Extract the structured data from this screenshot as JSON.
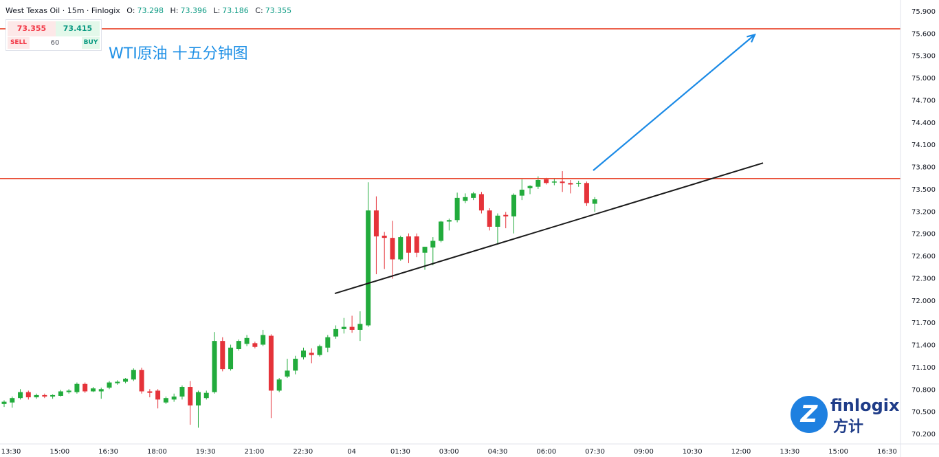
{
  "header": {
    "symbol_line": "West Texas Oil · 15m · Finlogix",
    "o_label": "O:",
    "o_value": "73.298",
    "h_label": "H:",
    "h_value": "73.396",
    "l_label": "L:",
    "l_value": "73.186",
    "c_label": "C:",
    "c_value": "73.355"
  },
  "trade_panel": {
    "sell_price": "73.355",
    "buy_price": "73.415",
    "sell_label": "SELL",
    "quantity": "60",
    "buy_label": "BUY"
  },
  "annotation": "WTI原油 十五分钟图",
  "logo": {
    "name": "finlogix",
    "cn_name": "方计",
    "badge": "Z"
  },
  "chart_data": {
    "type": "candlestick",
    "interval": "15m",
    "y_ticks": [
      "75.900",
      "75.600",
      "75.300",
      "75.000",
      "74.700",
      "74.400",
      "74.100",
      "73.800",
      "73.500",
      "73.200",
      "72.900",
      "72.600",
      "72.300",
      "72.000",
      "71.700",
      "71.400",
      "71.100",
      "70.800",
      "70.500",
      "70.200"
    ],
    "x_ticks": [
      "13:30",
      "15:00",
      "16:30",
      "18:00",
      "19:30",
      "21:00",
      "22:30",
      "04",
      "01:30",
      "03:00",
      "04:30",
      "06:00",
      "07:30",
      "09:00",
      "10:30",
      "12:00",
      "13:30",
      "15:00",
      "16:30"
    ],
    "ylim": [
      70.15,
      75.95
    ],
    "colors": {
      "up": "#22ab3c",
      "down": "#e5333a",
      "hline": "#e8452c",
      "trend": "#1a1a1a",
      "arrow": "#1a8ae6"
    },
    "horizontal_lines": [
      75.66,
      73.64
    ],
    "trend_line": {
      "from": [
        0,
        72.09
      ],
      "to": [
        0,
        73.85
      ],
      "from_label": "~23:50",
      "to_label": "~12:45"
    },
    "arrow": {
      "from": [
        0,
        73.75
      ],
      "to": [
        0,
        75.58
      ],
      "from_label": "~07:20",
      "to_label": "~12:35"
    },
    "candles": [
      {
        "o": 70.6,
        "h": 70.65,
        "l": 70.56,
        "c": 70.63
      },
      {
        "o": 70.62,
        "h": 70.7,
        "l": 70.55,
        "c": 70.68
      },
      {
        "o": 70.68,
        "h": 70.8,
        "l": 70.66,
        "c": 70.76
      },
      {
        "o": 70.76,
        "h": 70.78,
        "l": 70.66,
        "c": 70.69
      },
      {
        "o": 70.69,
        "h": 70.74,
        "l": 70.67,
        "c": 70.72
      },
      {
        "o": 70.72,
        "h": 70.74,
        "l": 70.68,
        "c": 70.7
      },
      {
        "o": 70.7,
        "h": 70.73,
        "l": 70.67,
        "c": 70.72
      },
      {
        "o": 70.71,
        "h": 70.79,
        "l": 70.7,
        "c": 70.77
      },
      {
        "o": 70.76,
        "h": 70.8,
        "l": 70.74,
        "c": 70.78
      },
      {
        "o": 70.76,
        "h": 70.89,
        "l": 70.74,
        "c": 70.87
      },
      {
        "o": 70.87,
        "h": 70.89,
        "l": 70.75,
        "c": 70.77
      },
      {
        "o": 70.77,
        "h": 70.83,
        "l": 70.76,
        "c": 70.81
      },
      {
        "o": 70.77,
        "h": 70.82,
        "l": 70.67,
        "c": 70.8
      },
      {
        "o": 70.82,
        "h": 70.91,
        "l": 70.8,
        "c": 70.89
      },
      {
        "o": 70.88,
        "h": 70.92,
        "l": 70.86,
        "c": 70.9
      },
      {
        "o": 70.9,
        "h": 70.95,
        "l": 70.88,
        "c": 70.94
      },
      {
        "o": 70.93,
        "h": 71.08,
        "l": 70.91,
        "c": 71.06
      },
      {
        "o": 71.06,
        "h": 71.09,
        "l": 70.74,
        "c": 70.77
      },
      {
        "o": 70.77,
        "h": 70.8,
        "l": 70.69,
        "c": 70.75
      },
      {
        "o": 70.78,
        "h": 70.8,
        "l": 70.54,
        "c": 70.66
      },
      {
        "o": 70.62,
        "h": 70.7,
        "l": 70.6,
        "c": 70.68
      },
      {
        "o": 70.66,
        "h": 70.74,
        "l": 70.63,
        "c": 70.7
      },
      {
        "o": 70.7,
        "h": 70.85,
        "l": 70.66,
        "c": 70.83
      },
      {
        "o": 70.83,
        "h": 70.91,
        "l": 70.32,
        "c": 70.58
      },
      {
        "o": 70.58,
        "h": 70.78,
        "l": 70.28,
        "c": 70.76
      },
      {
        "o": 70.68,
        "h": 70.78,
        "l": 70.66,
        "c": 70.75
      },
      {
        "o": 70.76,
        "h": 71.57,
        "l": 70.74,
        "c": 71.45
      },
      {
        "o": 71.45,
        "h": 71.5,
        "l": 71.04,
        "c": 71.07
      },
      {
        "o": 71.07,
        "h": 71.4,
        "l": 71.05,
        "c": 71.36
      },
      {
        "o": 71.34,
        "h": 71.47,
        "l": 71.32,
        "c": 71.45
      },
      {
        "o": 71.41,
        "h": 71.53,
        "l": 71.38,
        "c": 71.49
      },
      {
        "o": 71.42,
        "h": 71.44,
        "l": 71.35,
        "c": 71.37
      },
      {
        "o": 71.4,
        "h": 71.6,
        "l": 71.38,
        "c": 71.53
      },
      {
        "o": 71.52,
        "h": 71.54,
        "l": 70.41,
        "c": 70.78
      },
      {
        "o": 70.78,
        "h": 70.95,
        "l": 70.76,
        "c": 70.93
      },
      {
        "o": 70.97,
        "h": 71.21,
        "l": 70.95,
        "c": 71.05
      },
      {
        "o": 71.05,
        "h": 71.25,
        "l": 71.0,
        "c": 71.21
      },
      {
        "o": 71.23,
        "h": 71.36,
        "l": 71.2,
        "c": 71.32
      },
      {
        "o": 71.29,
        "h": 71.35,
        "l": 71.15,
        "c": 71.26
      },
      {
        "o": 71.26,
        "h": 71.4,
        "l": 71.24,
        "c": 71.38
      },
      {
        "o": 71.36,
        "h": 71.53,
        "l": 71.3,
        "c": 71.5
      },
      {
        "o": 71.51,
        "h": 71.66,
        "l": 71.48,
        "c": 71.61
      },
      {
        "o": 71.61,
        "h": 71.76,
        "l": 71.55,
        "c": 71.64
      },
      {
        "o": 71.64,
        "h": 71.79,
        "l": 71.56,
        "c": 71.6
      },
      {
        "o": 71.6,
        "h": 71.85,
        "l": 71.45,
        "c": 71.68
      },
      {
        "o": 71.66,
        "h": 73.59,
        "l": 71.64,
        "c": 73.21
      },
      {
        "o": 73.21,
        "h": 73.4,
        "l": 72.35,
        "c": 72.86
      },
      {
        "o": 72.87,
        "h": 72.92,
        "l": 72.42,
        "c": 72.84
      },
      {
        "o": 72.84,
        "h": 73.07,
        "l": 72.29,
        "c": 72.55
      },
      {
        "o": 72.55,
        "h": 72.87,
        "l": 72.53,
        "c": 72.85
      },
      {
        "o": 72.86,
        "h": 72.9,
        "l": 72.5,
        "c": 72.64
      },
      {
        "o": 72.86,
        "h": 72.9,
        "l": 72.58,
        "c": 72.64
      },
      {
        "o": 72.64,
        "h": 72.72,
        "l": 72.41,
        "c": 72.72
      },
      {
        "o": 72.71,
        "h": 72.85,
        "l": 72.47,
        "c": 72.8
      },
      {
        "o": 72.8,
        "h": 73.07,
        "l": 72.78,
        "c": 73.06
      },
      {
        "o": 73.06,
        "h": 73.1,
        "l": 72.94,
        "c": 73.08
      },
      {
        "o": 73.08,
        "h": 73.45,
        "l": 73.05,
        "c": 73.38
      },
      {
        "o": 73.34,
        "h": 73.44,
        "l": 73.31,
        "c": 73.39
      },
      {
        "o": 73.38,
        "h": 73.46,
        "l": 73.35,
        "c": 73.44
      },
      {
        "o": 73.43,
        "h": 73.46,
        "l": 73.17,
        "c": 73.21
      },
      {
        "o": 73.21,
        "h": 73.24,
        "l": 72.94,
        "c": 72.99
      },
      {
        "o": 72.99,
        "h": 73.17,
        "l": 72.75,
        "c": 73.14
      },
      {
        "o": 73.15,
        "h": 73.19,
        "l": 72.97,
        "c": 73.13
      },
      {
        "o": 73.13,
        "h": 73.44,
        "l": 72.9,
        "c": 73.42
      },
      {
        "o": 73.41,
        "h": 73.63,
        "l": 73.35,
        "c": 73.49
      },
      {
        "o": 73.51,
        "h": 73.55,
        "l": 73.43,
        "c": 73.54
      },
      {
        "o": 73.53,
        "h": 73.67,
        "l": 73.5,
        "c": 73.62
      },
      {
        "o": 73.63,
        "h": 73.65,
        "l": 73.56,
        "c": 73.58
      },
      {
        "o": 73.59,
        "h": 73.64,
        "l": 73.55,
        "c": 73.6
      },
      {
        "o": 73.6,
        "h": 73.74,
        "l": 73.46,
        "c": 73.58
      },
      {
        "o": 73.58,
        "h": 73.62,
        "l": 73.44,
        "c": 73.56
      },
      {
        "o": 73.57,
        "h": 73.61,
        "l": 73.53,
        "c": 73.58
      },
      {
        "o": 73.58,
        "h": 73.6,
        "l": 73.27,
        "c": 73.31
      },
      {
        "o": 73.3,
        "h": 73.39,
        "l": 73.19,
        "c": 73.36
      }
    ]
  }
}
